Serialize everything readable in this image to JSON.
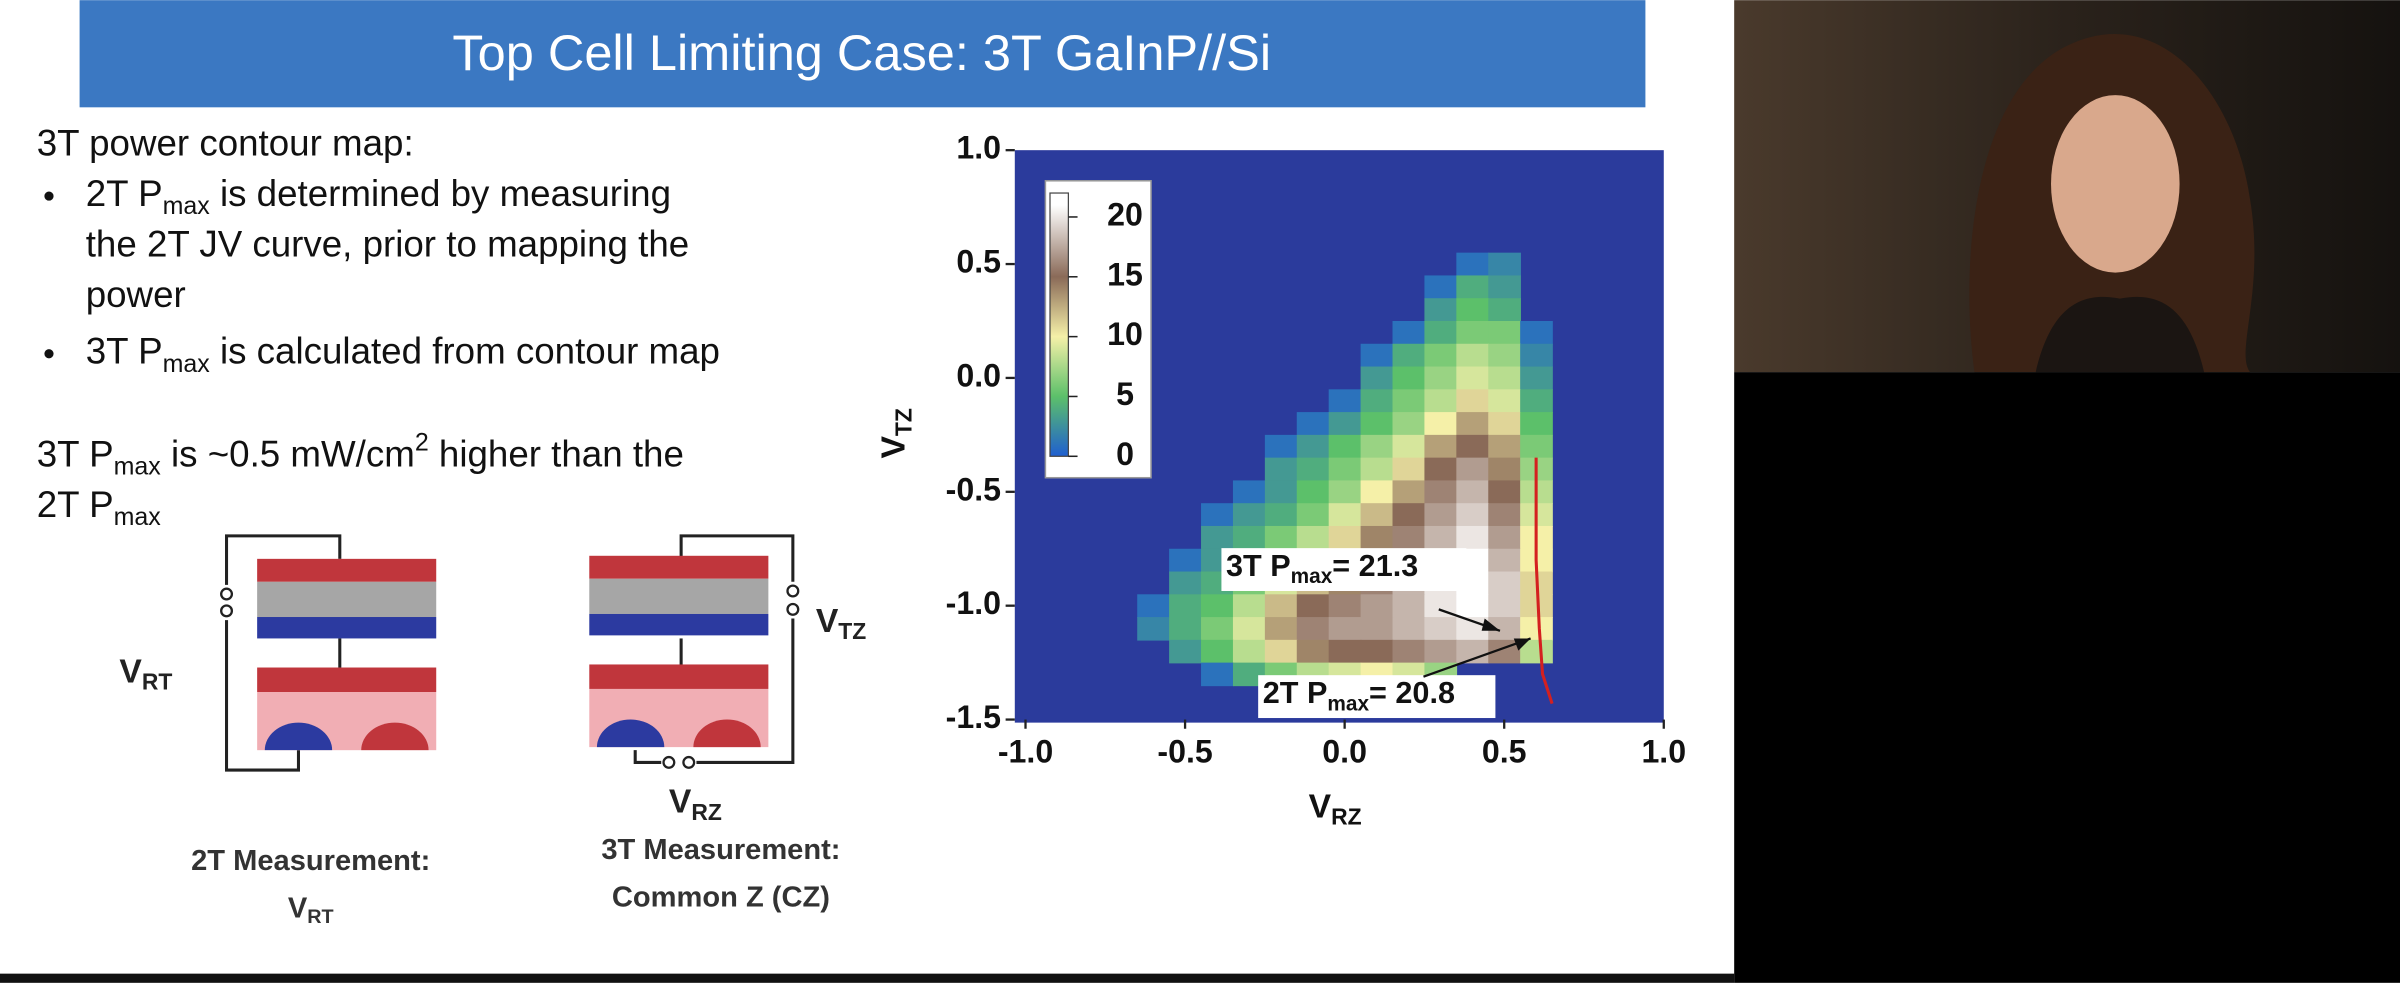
{
  "header": {
    "title": "Top Cell Limiting Case: 3T GaInP//Si"
  },
  "slide": {
    "intro": "3T power contour map:",
    "bullets": [
      [
        [
          {
            "text": "2T P"
          },
          {
            "sub": "max"
          },
          {
            "text": " is determined by measuring"
          }
        ],
        [
          {
            "text": "the 2T JV curve, prior to mapping the"
          }
        ],
        [
          {
            "text": "power"
          }
        ]
      ],
      [
        [
          {
            "text": "3T P"
          },
          {
            "sub": "max"
          },
          {
            "text": " is calculated from contour map"
          }
        ]
      ]
    ],
    "note": [
      [
        {
          "text": "3T P"
        },
        {
          "sub": "max"
        },
        {
          "text": " is ~0.5 mW/cm"
        },
        {
          "sup": "2"
        },
        {
          "text": " higher than the"
        }
      ],
      [
        {
          "text": "2T P"
        },
        {
          "sub": "max"
        }
      ]
    ]
  },
  "diagrams": {
    "labels": [
      [
        {
          "text": "V"
        },
        {
          "sub": "RT"
        }
      ],
      [
        {
          "text": "V"
        },
        {
          "sub": "TZ"
        }
      ],
      [
        {
          "text": "V"
        },
        {
          "sub": "RZ"
        }
      ]
    ],
    "captions": [
      [
        [
          {
            "text": "2T Measurement:"
          }
        ],
        [
          {
            "text": "V"
          },
          {
            "sub": "RT"
          }
        ]
      ],
      [
        [
          {
            "text": "3T Measurement:"
          }
        ],
        [
          {
            "text": "Common Z (CZ)"
          }
        ]
      ]
    ]
  },
  "chart_data": {
    "type": "heatmap",
    "x": [
      -0.6,
      -0.5,
      -0.4,
      -0.3,
      -0.2,
      -0.1,
      0,
      0.1,
      0.2,
      0.3,
      0.4,
      0.5,
      0.6
    ],
    "y": [
      0.5,
      0.4,
      0.3,
      0.2,
      0.1,
      0,
      -0.1,
      -0.2,
      -0.3,
      -0.4,
      -0.5,
      -0.6,
      -0.7,
      -0.8,
      -0.9,
      -1.0,
      -1.1,
      -1.2,
      -1.3
    ],
    "values": [
      [
        null,
        null,
        null,
        null,
        null,
        null,
        null,
        null,
        null,
        null,
        1,
        2,
        null
      ],
      [
        null,
        null,
        null,
        null,
        null,
        null,
        null,
        null,
        null,
        1,
        4,
        3,
        null
      ],
      [
        null,
        null,
        null,
        null,
        null,
        null,
        null,
        null,
        null,
        3,
        5,
        4,
        null
      ],
      [
        null,
        null,
        null,
        null,
        null,
        null,
        null,
        null,
        1,
        4,
        6,
        6,
        1
      ],
      [
        null,
        null,
        null,
        null,
        null,
        null,
        null,
        1,
        4,
        6,
        8,
        7,
        2
      ],
      [
        null,
        null,
        null,
        null,
        null,
        null,
        null,
        3,
        5,
        7,
        9,
        8,
        3
      ],
      [
        null,
        null,
        null,
        null,
        null,
        null,
        1,
        4,
        6,
        8,
        11,
        9,
        4
      ],
      [
        null,
        null,
        null,
        null,
        null,
        1,
        3,
        5,
        7,
        10,
        13,
        11,
        5
      ],
      [
        null,
        null,
        null,
        null,
        1,
        3,
        5,
        7,
        9,
        13,
        15,
        13,
        6
      ],
      [
        null,
        null,
        null,
        null,
        3,
        4,
        6,
        8,
        11,
        15,
        17,
        14,
        7
      ],
      [
        null,
        null,
        null,
        1,
        3,
        5,
        7,
        10,
        13,
        16,
        18,
        15,
        8
      ],
      [
        null,
        null,
        1,
        3,
        4,
        6,
        9,
        12,
        15,
        17,
        19,
        16,
        9
      ],
      [
        null,
        null,
        3,
        4,
        6,
        8,
        11,
        14,
        16,
        18,
        20,
        17,
        10
      ],
      [
        null,
        1,
        3,
        5,
        7,
        10,
        12,
        15,
        17,
        19,
        21,
        18,
        10
      ],
      [
        null,
        3,
        4,
        6,
        9,
        12,
        14,
        16,
        18,
        20,
        21,
        19,
        11
      ],
      [
        1,
        4,
        5,
        8,
        12,
        15,
        16,
        17,
        18,
        20,
        21,
        19,
        11
      ],
      [
        2,
        4,
        6,
        9,
        13,
        16,
        17,
        17,
        18,
        19,
        20,
        18,
        10
      ],
      [
        null,
        3,
        5,
        8,
        11,
        14,
        15,
        15,
        16,
        17,
        18,
        16,
        8
      ],
      [
        null,
        null,
        1,
        4,
        6,
        8,
        9,
        10,
        9,
        7,
        null,
        null,
        null
      ]
    ],
    "xlim": [
      -1.0,
      1.0
    ],
    "ylim": [
      -1.5,
      1.0
    ],
    "xticks": [
      {
        "value": -1.0,
        "label": "-1.0"
      },
      -0.5,
      {
        "value": 0,
        "label": "0.0"
      },
      0.5,
      {
        "value": 1.0,
        "label": "1.0"
      }
    ],
    "yticks": [
      {
        "value": 1.0,
        "label": "1.0"
      },
      0.5,
      {
        "value": 0,
        "label": "0.0"
      },
      -0.5,
      {
        "value": -1.0,
        "label": "-1.0"
      },
      -1.5
    ],
    "xlabel": [
      {
        "text": "V"
      },
      {
        "sub": "RZ"
      }
    ],
    "ylabel": [
      {
        "text": "V"
      },
      {
        "sub": "TZ"
      }
    ],
    "background": "#2b3b9c",
    "colormap": [
      [
        0,
        "#1f5fd0"
      ],
      [
        5,
        "#5cc06a"
      ],
      [
        10,
        "#f5f0a8"
      ],
      [
        15,
        "#8a6a58"
      ],
      [
        21,
        "#ffffff"
      ]
    ],
    "colorbar": {
      "lim": [
        0,
        22
      ],
      "ticks": [
        0,
        5,
        10,
        15,
        20
      ]
    },
    "annotations": [
      [
        {
          "text": "3T P"
        },
        {
          "sub": "max"
        },
        {
          "text": "= 21.3"
        }
      ],
      [
        {
          "text": "2T P"
        },
        {
          "sub": "max"
        },
        {
          "text": "= 20.8"
        }
      ]
    ],
    "jv_curve": {
      "color": "#d42020",
      "x": [
        0.6,
        0.6,
        0.61,
        0.62,
        0.65
      ],
      "y": [
        -0.35,
        -0.8,
        -1.1,
        -1.3,
        -1.43
      ]
    }
  }
}
